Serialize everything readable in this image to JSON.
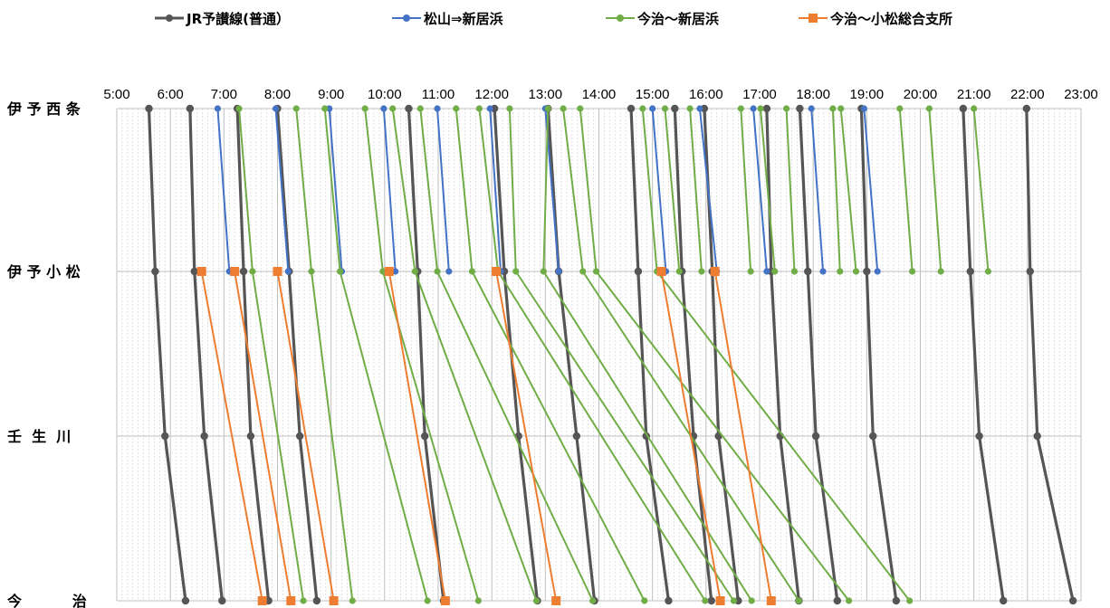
{
  "chart_data": {
    "type": "line",
    "title": "",
    "xlabel": "",
    "ylabel": "",
    "x_axis": {
      "range_minutes": [
        300,
        1380
      ],
      "ticks": [
        "5:00",
        "6:00",
        "7:00",
        "8:00",
        "9:00",
        "10:00",
        "11:00",
        "12:00",
        "13:00",
        "14:00",
        "15:00",
        "16:00",
        "17:00",
        "18:00",
        "19:00",
        "20:00",
        "21:00",
        "22:00",
        "23:00"
      ],
      "position": "top",
      "minor_gridlines": "every 6 minutes"
    },
    "stations": [
      {
        "name": "伊予西条",
        "display": "伊 予 西 条"
      },
      {
        "name": "伊予小松",
        "display": "伊 予 小 松"
      },
      {
        "name": "壬生川",
        "display": "壬  生  川"
      },
      {
        "name": "今治",
        "display": "今          治"
      }
    ],
    "legend_position": "top",
    "series": [
      {
        "name": "JR予讃線(普通）",
        "color": "#555555",
        "marker": "circle",
        "trains": [
          {
            "stops": [
              {
                "station": 0,
                "time": "5:36"
              },
              {
                "station": 1,
                "time": "5:43"
              },
              {
                "station": 2,
                "time": "5:54"
              },
              {
                "station": 3,
                "time": "6:17"
              }
            ]
          },
          {
            "stops": [
              {
                "station": 0,
                "time": "6:22"
              },
              {
                "station": 1,
                "time": "6:27"
              },
              {
                "station": 2,
                "time": "6:38"
              },
              {
                "station": 3,
                "time": "6:58"
              }
            ]
          },
          {
            "stops": [
              {
                "station": 0,
                "time": "7:15"
              },
              {
                "station": 1,
                "time": "7:22"
              },
              {
                "station": 2,
                "time": "7:30"
              },
              {
                "station": 3,
                "time": "7:50"
              }
            ]
          },
          {
            "stops": [
              {
                "station": 0,
                "time": "8:00"
              },
              {
                "station": 1,
                "time": "8:13"
              },
              {
                "station": 2,
                "time": "8:25"
              },
              {
                "station": 3,
                "time": "8:44"
              }
            ]
          },
          {
            "stops": [
              {
                "station": 0,
                "time": "10:27"
              },
              {
                "station": 1,
                "time": "10:37"
              },
              {
                "station": 2,
                "time": "10:45"
              },
              {
                "station": 3,
                "time": "11:06"
              }
            ]
          },
          {
            "stops": [
              {
                "station": 0,
                "time": "12:03"
              },
              {
                "station": 1,
                "time": "12:14"
              },
              {
                "station": 2,
                "time": "12:30"
              },
              {
                "station": 3,
                "time": "12:51"
              }
            ]
          },
          {
            "stops": [
              {
                "station": 0,
                "time": "13:03"
              },
              {
                "station": 1,
                "time": "13:15"
              },
              {
                "station": 2,
                "time": "13:35"
              },
              {
                "station": 3,
                "time": "13:55"
              }
            ]
          },
          {
            "stops": [
              {
                "station": 0,
                "time": "14:36"
              },
              {
                "station": 1,
                "time": "14:44"
              },
              {
                "station": 2,
                "time": "14:53"
              },
              {
                "station": 3,
                "time": "15:18"
              }
            ]
          },
          {
            "stops": [
              {
                "station": 0,
                "time": "15:25"
              },
              {
                "station": 1,
                "time": "15:33"
              },
              {
                "station": 2,
                "time": "15:46"
              },
              {
                "station": 3,
                "time": "16:06"
              }
            ]
          },
          {
            "stops": [
              {
                "station": 0,
                "time": "15:58"
              },
              {
                "station": 1,
                "time": "16:07"
              },
              {
                "station": 2,
                "time": "16:14"
              },
              {
                "station": 3,
                "time": "16:36"
              }
            ]
          },
          {
            "stops": [
              {
                "station": 0,
                "time": "17:08"
              },
              {
                "station": 1,
                "time": "17:13"
              },
              {
                "station": 2,
                "time": "17:23"
              },
              {
                "station": 3,
                "time": "17:44"
              }
            ]
          },
          {
            "stops": [
              {
                "station": 0,
                "time": "17:45"
              },
              {
                "station": 1,
                "time": "17:54"
              },
              {
                "station": 2,
                "time": "18:03"
              },
              {
                "station": 3,
                "time": "18:27"
              }
            ]
          },
          {
            "stops": [
              {
                "station": 0,
                "time": "18:54"
              },
              {
                "station": 1,
                "time": "19:00"
              },
              {
                "station": 2,
                "time": "19:07"
              },
              {
                "station": 3,
                "time": "19:33"
              }
            ]
          },
          {
            "stops": [
              {
                "station": 0,
                "time": "20:48"
              },
              {
                "station": 1,
                "time": "20:56"
              },
              {
                "station": 2,
                "time": "21:06"
              },
              {
                "station": 3,
                "time": "21:33"
              }
            ]
          },
          {
            "stops": [
              {
                "station": 0,
                "time": "21:59"
              },
              {
                "station": 1,
                "time": "22:03"
              },
              {
                "station": 2,
                "time": "22:11"
              },
              {
                "station": 3,
                "time": "22:51"
              }
            ]
          }
        ]
      },
      {
        "name": "松山⇒新居浜",
        "color": "#4472C4",
        "marker": "circle",
        "trains": [
          {
            "stops": [
              {
                "station": 0,
                "time": "6:53"
              },
              {
                "station": 1,
                "time": "7:06"
              }
            ]
          },
          {
            "stops": [
              {
                "station": 0,
                "time": "7:58"
              },
              {
                "station": 1,
                "time": "8:12"
              }
            ]
          },
          {
            "stops": [
              {
                "station": 0,
                "time": "8:58"
              },
              {
                "station": 1,
                "time": "9:12"
              }
            ]
          },
          {
            "stops": [
              {
                "station": 0,
                "time": "9:59"
              },
              {
                "station": 1,
                "time": "10:12"
              }
            ]
          },
          {
            "stops": [
              {
                "station": 0,
                "time": "10:59"
              },
              {
                "station": 1,
                "time": "11:12"
              }
            ]
          },
          {
            "stops": [
              {
                "station": 0,
                "time": "11:58"
              },
              {
                "station": 1,
                "time": "12:10"
              }
            ]
          },
          {
            "stops": [
              {
                "station": 0,
                "time": "13:00"
              },
              {
                "station": 1,
                "time": "13:15"
              }
            ]
          },
          {
            "stops": [
              {
                "station": 0,
                "time": "15:00"
              },
              {
                "station": 1,
                "time": "15:15"
              }
            ]
          },
          {
            "stops": [
              {
                "station": 0,
                "time": "15:53"
              },
              {
                "station": 1,
                "time": "16:12"
              }
            ]
          },
          {
            "stops": [
              {
                "station": 0,
                "time": "16:53"
              },
              {
                "station": 1,
                "time": "17:08"
              }
            ]
          },
          {
            "stops": [
              {
                "station": 0,
                "time": "17:58"
              },
              {
                "station": 1,
                "time": "18:11"
              }
            ]
          },
          {
            "stops": [
              {
                "station": 0,
                "time": "18:57"
              },
              {
                "station": 1,
                "time": "19:12"
              }
            ]
          }
        ]
      },
      {
        "name": "今治～新居浜",
        "color": "#70AD47",
        "marker": "circle",
        "trains": [
          {
            "stops": [
              {
                "station": 0,
                "time": "7:17"
              },
              {
                "station": 1,
                "time": "7:32"
              },
              {
                "station": 3,
                "time": "8:29"
              }
            ]
          },
          {
            "stops": [
              {
                "station": 0,
                "time": "8:21"
              },
              {
                "station": 1,
                "time": "8:38"
              },
              {
                "station": 3,
                "time": "9:24"
              }
            ]
          },
          {
            "stops": [
              {
                "station": 0,
                "time": "8:53"
              },
              {
                "station": 1,
                "time": "9:10"
              },
              {
                "station": 3,
                "time": "10:48"
              }
            ]
          },
          {
            "stops": [
              {
                "station": 0,
                "time": "9:38"
              },
              {
                "station": 1,
                "time": "9:58"
              },
              {
                "station": 3,
                "time": "11:45"
              }
            ]
          },
          {
            "stops": [
              {
                "station": 0,
                "time": "10:09"
              },
              {
                "station": 1,
                "time": "10:34"
              },
              {
                "station": 3,
                "time": "12:50"
              }
            ]
          },
          {
            "stops": [
              {
                "station": 0,
                "time": "10:40"
              },
              {
                "station": 1,
                "time": "10:59"
              },
              {
                "station": 3,
                "time": "13:53"
              }
            ]
          },
          {
            "stops": [
              {
                "station": 0,
                "time": "11:20"
              },
              {
                "station": 1,
                "time": "11:38"
              },
              {
                "station": 3,
                "time": "14:51"
              }
            ]
          },
          {
            "stops": [
              {
                "station": 0,
                "time": "11:46"
              },
              {
                "station": 1,
                "time": "12:07"
              },
              {
                "station": 3,
                "time": "15:59"
              }
            ]
          },
          {
            "stops": [
              {
                "station": 0,
                "time": "12:20"
              },
              {
                "station": 1,
                "time": "12:27"
              },
              {
                "station": 3,
                "time": "16:31"
              }
            ]
          },
          {
            "stops": [
              {
                "station": 0,
                "time": "13:03"
              },
              {
                "station": 1,
                "time": "12:58"
              },
              {
                "station": 3,
                "time": "16:51"
              }
            ]
          },
          {
            "stops": [
              {
                "station": 0,
                "time": "13:20"
              },
              {
                "station": 1,
                "time": "13:42"
              },
              {
                "station": 3,
                "time": "17:44"
              }
            ]
          },
          {
            "stops": [
              {
                "station": 0,
                "time": "13:39"
              },
              {
                "station": 1,
                "time": "13:57"
              },
              {
                "station": 3,
                "time": "18:40"
              }
            ]
          },
          {
            "stops": [
              {
                "station": 0,
                "time": "14:49"
              },
              {
                "station": 1,
                "time": "15:05"
              },
              {
                "station": 3,
                "time": "19:48"
              }
            ]
          },
          {
            "stops": [
              {
                "station": 0,
                "time": "15:14"
              },
              {
                "station": 1,
                "time": "15:30"
              }
            ]
          },
          {
            "stops": [
              {
                "station": 0,
                "time": "15:42"
              },
              {
                "station": 1,
                "time": "15:55"
              }
            ]
          },
          {
            "stops": [
              {
                "station": 0,
                "time": "16:39"
              },
              {
                "station": 1,
                "time": "16:50"
              }
            ]
          },
          {
            "stops": [
              {
                "station": 0,
                "time": "17:01"
              },
              {
                "station": 1,
                "time": "17:17"
              }
            ]
          },
          {
            "stops": [
              {
                "station": 0,
                "time": "17:30"
              },
              {
                "station": 1,
                "time": "17:39"
              }
            ]
          },
          {
            "stops": [
              {
                "station": 0,
                "time": "18:22"
              },
              {
                "station": 1,
                "time": "18:30"
              }
            ]
          },
          {
            "stops": [
              {
                "station": 0,
                "time": "18:31"
              },
              {
                "station": 1,
                "time": "18:48"
              }
            ]
          },
          {
            "stops": [
              {
                "station": 0,
                "time": "19:37"
              },
              {
                "station": 1,
                "time": "19:51"
              }
            ]
          },
          {
            "stops": [
              {
                "station": 0,
                "time": "20:10"
              },
              {
                "station": 1,
                "time": "20:23"
              }
            ]
          },
          {
            "stops": [
              {
                "station": 0,
                "time": "21:00"
              },
              {
                "station": 1,
                "time": "21:16"
              }
            ]
          }
        ]
      },
      {
        "name": "今治～小松総合支所",
        "color": "#ED7D31",
        "marker": "square",
        "trains": [
          {
            "stops": [
              {
                "station": 1,
                "time": "6:35"
              },
              {
                "station": 3,
                "time": "7:43"
              }
            ]
          },
          {
            "stops": [
              {
                "station": 1,
                "time": "7:12"
              },
              {
                "station": 3,
                "time": "8:15"
              }
            ]
          },
          {
            "stops": [
              {
                "station": 1,
                "time": "8:00"
              },
              {
                "station": 3,
                "time": "9:03"
              }
            ]
          },
          {
            "stops": [
              {
                "station": 1,
                "time": "10:05"
              },
              {
                "station": 3,
                "time": "11:08"
              }
            ]
          },
          {
            "stops": [
              {
                "station": 1,
                "time": "12:05"
              },
              {
                "station": 3,
                "time": "13:12"
              }
            ]
          },
          {
            "stops": [
              {
                "station": 1,
                "time": "15:10"
              },
              {
                "station": 3,
                "time": "16:16"
              }
            ]
          },
          {
            "stops": [
              {
                "station": 1,
                "time": "16:10"
              },
              {
                "station": 3,
                "time": "17:13"
              }
            ]
          }
        ]
      }
    ]
  }
}
